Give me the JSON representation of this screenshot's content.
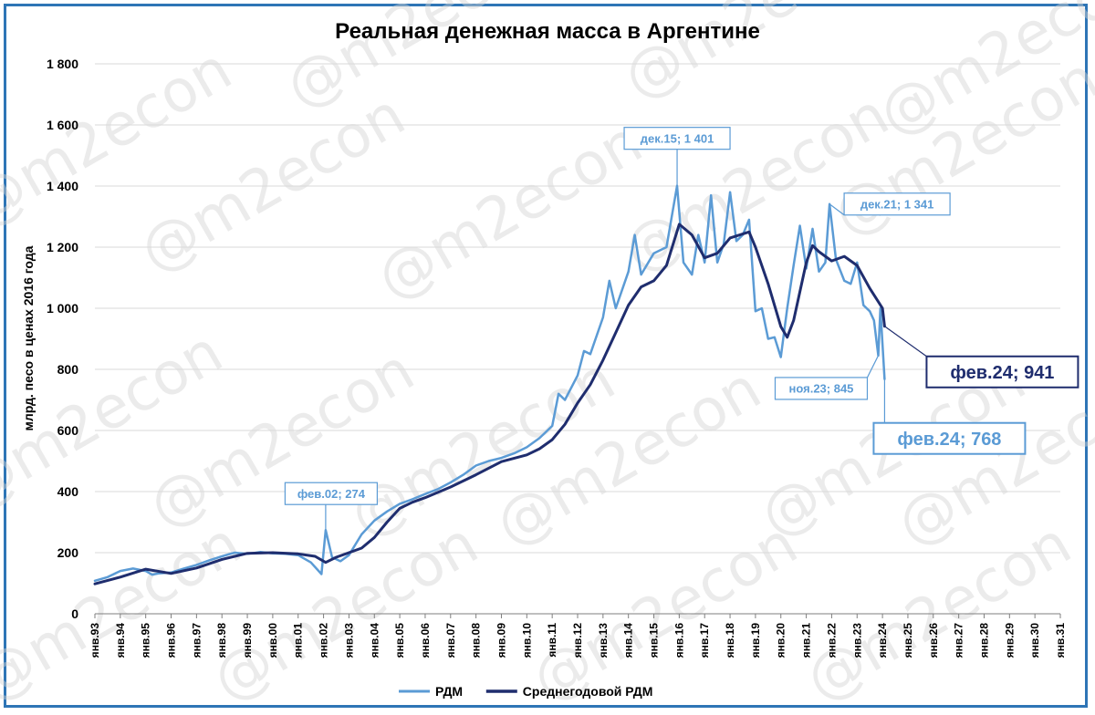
{
  "chart_data": {
    "type": "line",
    "title": "Реальная денежная масса в Аргентине",
    "ylabel": "млрд. песо в ценах 2016 года",
    "xlabel": "",
    "ylim": [
      0,
      1800
    ],
    "xlim": [
      "янв.93",
      "янв.31"
    ],
    "y_ticks": [
      {
        "value": 0,
        "label": "0"
      },
      {
        "value": 200,
        "label": "200"
      },
      {
        "value": 400,
        "label": "400"
      },
      {
        "value": 600,
        "label": "600"
      },
      {
        "value": 800,
        "label": "800"
      },
      {
        "value": 1000,
        "label": "1 000"
      },
      {
        "value": 1200,
        "label": "1 200"
      },
      {
        "value": 1400,
        "label": "1 400"
      },
      {
        "value": 1600,
        "label": "1 600"
      },
      {
        "value": 1800,
        "label": "1 800"
      }
    ],
    "x_ticks": [
      "янв.93",
      "янв.94",
      "янв.95",
      "янв.96",
      "янв.97",
      "янв.98",
      "янв.99",
      "янв.00",
      "янв.01",
      "янв.02",
      "янв.03",
      "янв.04",
      "янв.05",
      "янв.06",
      "янв.07",
      "янв.08",
      "янв.09",
      "янв.10",
      "янв.11",
      "янв.12",
      "янв.13",
      "янв.14",
      "янв.15",
      "янв.16",
      "янв.17",
      "янв.18",
      "янв.19",
      "янв.20",
      "янв.21",
      "янв.22",
      "янв.23",
      "янв.24",
      "янв.25",
      "янв.26",
      "янв.27",
      "янв.28",
      "янв.29",
      "янв.30",
      "янв.31"
    ],
    "grid": true,
    "legend_position": "bottom",
    "series": [
      {
        "name": "РДМ",
        "color": "#5b9bd5",
        "points": [
          [
            "янв.93",
            108
          ],
          [
            "июл.93",
            120
          ],
          [
            "янв.94",
            140
          ],
          [
            "июл.94",
            148
          ],
          [
            "янв.95",
            140
          ],
          [
            "апр.95",
            128
          ],
          [
            "июл.95",
            132
          ],
          [
            "янв.96",
            135
          ],
          [
            "июл.96",
            148
          ],
          [
            "янв.97",
            160
          ],
          [
            "июл.97",
            175
          ],
          [
            "янв.98",
            188
          ],
          [
            "июл.98",
            200
          ],
          [
            "янв.99",
            196
          ],
          [
            "июл.99",
            202
          ],
          [
            "янв.00",
            198
          ],
          [
            "июл.00",
            196
          ],
          [
            "янв.01",
            192
          ],
          [
            "июл.01",
            168
          ],
          [
            "дек.01",
            130
          ],
          [
            "фев.02",
            274
          ],
          [
            "май.02",
            185
          ],
          [
            "сен.02",
            172
          ],
          [
            "янв.03",
            192
          ],
          [
            "июл.03",
            260
          ],
          [
            "янв.04",
            305
          ],
          [
            "июл.04",
            335
          ],
          [
            "янв.05",
            360
          ],
          [
            "июл.05",
            375
          ],
          [
            "янв.06",
            392
          ],
          [
            "июл.06",
            408
          ],
          [
            "янв.07",
            430
          ],
          [
            "июл.07",
            455
          ],
          [
            "янв.08",
            485
          ],
          [
            "июл.08",
            500
          ],
          [
            "янв.09",
            510
          ],
          [
            "июл.09",
            525
          ],
          [
            "янв.10",
            545
          ],
          [
            "июл.10",
            575
          ],
          [
            "янв.11",
            615
          ],
          [
            "апр.11",
            720
          ],
          [
            "июл.11",
            700
          ],
          [
            "янв.12",
            780
          ],
          [
            "апр.12",
            860
          ],
          [
            "июл.12",
            850
          ],
          [
            "янв.13",
            970
          ],
          [
            "апр.13",
            1090
          ],
          [
            "июл.13",
            1000
          ],
          [
            "янв.14",
            1120
          ],
          [
            "апр.14",
            1240
          ],
          [
            "июл.14",
            1110
          ],
          [
            "янв.15",
            1180
          ],
          [
            "июл.15",
            1200
          ],
          [
            "дек.15",
            1401
          ],
          [
            "мар.16",
            1150
          ],
          [
            "июл.16",
            1110
          ],
          [
            "окт.16",
            1240
          ],
          [
            "янв.17",
            1150
          ],
          [
            "апр.17",
            1370
          ],
          [
            "июл.17",
            1150
          ],
          [
            "окт.17",
            1210
          ],
          [
            "янв.18",
            1380
          ],
          [
            "апр.18",
            1220
          ],
          [
            "июл.18",
            1240
          ],
          [
            "окт.18",
            1290
          ],
          [
            "янв.19",
            990
          ],
          [
            "апр.19",
            1000
          ],
          [
            "июл.19",
            900
          ],
          [
            "окт.19",
            905
          ],
          [
            "янв.20",
            840
          ],
          [
            "апр.20",
            1000
          ],
          [
            "июл.20",
            1140
          ],
          [
            "окт.20",
            1270
          ],
          [
            "янв.21",
            1130
          ],
          [
            "апр.21",
            1260
          ],
          [
            "июл.21",
            1120
          ],
          [
            "окт.21",
            1150
          ],
          [
            "дек.21",
            1341
          ],
          [
            "мар.22",
            1160
          ],
          [
            "июл.22",
            1090
          ],
          [
            "окт.22",
            1080
          ],
          [
            "янв.23",
            1150
          ],
          [
            "апр.23",
            1010
          ],
          [
            "июл.23",
            990
          ],
          [
            "сен.23",
            960
          ],
          [
            "ноя.23",
            845
          ],
          [
            "дек.23",
            1000
          ],
          [
            "фев.24",
            768
          ]
        ]
      },
      {
        "name": "Среднегодовой РДМ",
        "color": "#1f2d6e",
        "points": [
          [
            "янв.93",
            98
          ],
          [
            "янв.94",
            120
          ],
          [
            "янв.95",
            146
          ],
          [
            "янв.96",
            132
          ],
          [
            "янв.97",
            150
          ],
          [
            "янв.98",
            178
          ],
          [
            "янв.99",
            198
          ],
          [
            "янв.00",
            200
          ],
          [
            "янв.01",
            196
          ],
          [
            "сен.01",
            188
          ],
          [
            "фев.02",
            168
          ],
          [
            "июл.02",
            185
          ],
          [
            "янв.03",
            200
          ],
          [
            "июл.03",
            215
          ],
          [
            "янв.04",
            250
          ],
          [
            "июл.04",
            300
          ],
          [
            "янв.05",
            345
          ],
          [
            "июл.05",
            365
          ],
          [
            "янв.06",
            380
          ],
          [
            "янв.07",
            415
          ],
          [
            "янв.08",
            455
          ],
          [
            "янв.09",
            498
          ],
          [
            "янв.10",
            520
          ],
          [
            "июл.10",
            540
          ],
          [
            "янв.11",
            570
          ],
          [
            "июл.11",
            620
          ],
          [
            "янв.12",
            690
          ],
          [
            "июл.12",
            750
          ],
          [
            "янв.13",
            830
          ],
          [
            "июл.13",
            920
          ],
          [
            "янв.14",
            1010
          ],
          [
            "июл.14",
            1070
          ],
          [
            "янв.15",
            1090
          ],
          [
            "июл.15",
            1140
          ],
          [
            "янв.16",
            1275
          ],
          [
            "июл.16",
            1240
          ],
          [
            "янв.17",
            1165
          ],
          [
            "июл.17",
            1180
          ],
          [
            "янв.18",
            1230
          ],
          [
            "окт.18",
            1250
          ],
          [
            "янв.19",
            1200
          ],
          [
            "июл.19",
            1080
          ],
          [
            "янв.20",
            940
          ],
          [
            "апр.20",
            905
          ],
          [
            "июл.20",
            960
          ],
          [
            "янв.21",
            1150
          ],
          [
            "апр.21",
            1205
          ],
          [
            "июл.21",
            1185
          ],
          [
            "янв.22",
            1155
          ],
          [
            "июл.22",
            1170
          ],
          [
            "янв.23",
            1140
          ],
          [
            "июл.23",
            1065
          ],
          [
            "янв.24",
            1000
          ],
          [
            "фев.24",
            941
          ]
        ]
      }
    ],
    "annotations": [
      {
        "label": "фев.02;  274",
        "series": "РДМ",
        "x": "фев.02",
        "y": 274,
        "size": "small",
        "placement": "above"
      },
      {
        "label": "дек.15;  1 401",
        "series": "РДМ",
        "x": "дек.15",
        "y": 1401,
        "size": "small",
        "placement": "above"
      },
      {
        "label": "дек.21;  1 341",
        "series": "РДМ",
        "x": "дек.21",
        "y": 1341,
        "size": "small",
        "placement": "right"
      },
      {
        "label": "ноя.23;  845",
        "series": "РДМ",
        "x": "ноя.23",
        "y": 845,
        "size": "small",
        "placement": "below-left"
      },
      {
        "label": "фев.24;   768",
        "series": "РДМ",
        "x": "фев.24",
        "y": 768,
        "size": "large",
        "placement": "below-right"
      },
      {
        "label": "фев.24;   941",
        "series": "Среднегодовой РДМ",
        "x": "фев.24",
        "y": 941,
        "size": "large",
        "placement": "right"
      }
    ],
    "watermark": "@m2econ"
  }
}
